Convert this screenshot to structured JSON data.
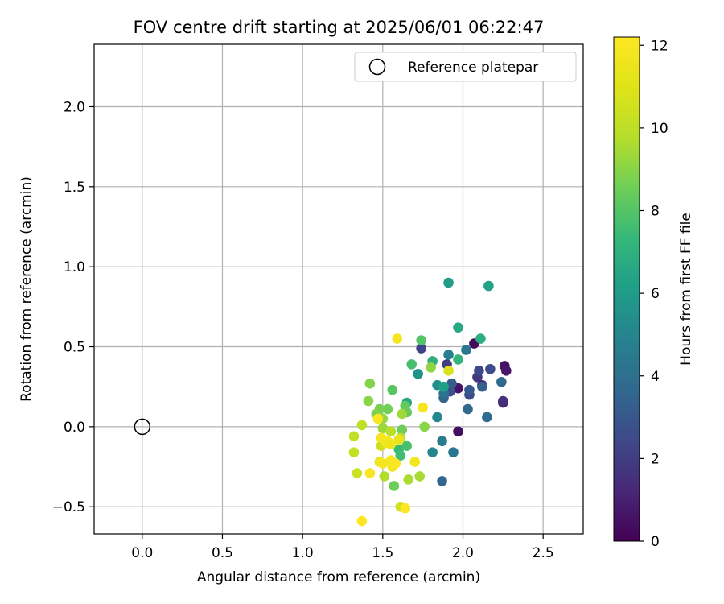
{
  "chart_data": {
    "type": "scatter",
    "title": "FOV centre drift starting at 2025/06/01 06:22:47",
    "xlabel": "Angular distance from reference (arcmin)",
    "ylabel": "Rotation from reference (arcmin)",
    "xlim": [
      -0.3,
      2.75
    ],
    "ylim": [
      -0.67,
      2.39
    ],
    "xticks": [
      0.0,
      0.5,
      1.0,
      1.5,
      2.0,
      2.5
    ],
    "xtick_labels": [
      "0.0",
      "0.5",
      "1.0",
      "1.5",
      "2.0",
      "2.5"
    ],
    "yticks": [
      -0.5,
      0.0,
      0.5,
      1.0,
      1.5,
      2.0
    ],
    "ytick_labels": [
      "−0.5",
      "0.0",
      "0.5",
      "1.0",
      "1.5",
      "2.0"
    ],
    "grid": true,
    "legend": {
      "placement": "top-right",
      "entries": [
        "Reference platepar"
      ]
    },
    "reference_point": {
      "name": "Reference platepar",
      "x": 0.0,
      "y": 0.0
    },
    "colorbar": {
      "label": "Hours from first FF file",
      "colormap": "viridis",
      "range": [
        0,
        12.2
      ],
      "ticks": [
        0,
        2,
        4,
        6,
        8,
        10,
        12
      ],
      "tick_labels": [
        "0",
        "2",
        "4",
        "6",
        "8",
        "10",
        "12"
      ]
    },
    "points": [
      {
        "x": 2.07,
        "y": 0.52,
        "h": 0.3
      },
      {
        "x": 2.26,
        "y": 0.38,
        "h": 0.5
      },
      {
        "x": 2.27,
        "y": 0.35,
        "h": 0.7
      },
      {
        "x": 1.97,
        "y": 0.24,
        "h": 0.6
      },
      {
        "x": 1.97,
        "y": -0.03,
        "h": 0.4
      },
      {
        "x": 2.25,
        "y": 0.15,
        "h": 1.0
      },
      {
        "x": 2.25,
        "y": 0.16,
        "h": 1.5
      },
      {
        "x": 2.09,
        "y": 0.31,
        "h": 1.8
      },
      {
        "x": 2.12,
        "y": 0.26,
        "h": 1.2
      },
      {
        "x": 1.74,
        "y": 0.49,
        "h": 2.2
      },
      {
        "x": 1.9,
        "y": 0.39,
        "h": 2.0
      },
      {
        "x": 2.1,
        "y": 0.35,
        "h": 2.4
      },
      {
        "x": 2.17,
        "y": 0.36,
        "h": 2.6
      },
      {
        "x": 2.04,
        "y": 0.2,
        "h": 2.5
      },
      {
        "x": 2.04,
        "y": 0.23,
        "h": 3.0
      },
      {
        "x": 1.92,
        "y": 0.22,
        "h": 2.8
      },
      {
        "x": 1.93,
        "y": 0.27,
        "h": 3.2
      },
      {
        "x": 2.12,
        "y": 0.25,
        "h": 3.3
      },
      {
        "x": 2.24,
        "y": 0.28,
        "h": 3.8
      },
      {
        "x": 2.03,
        "y": 0.11,
        "h": 3.7
      },
      {
        "x": 2.15,
        "y": 0.06,
        "h": 3.9
      },
      {
        "x": 1.88,
        "y": 0.18,
        "h": 3.5
      },
      {
        "x": 1.88,
        "y": 0.21,
        "h": 4.2
      },
      {
        "x": 1.87,
        "y": -0.34,
        "h": 3.6
      },
      {
        "x": 1.94,
        "y": -0.16,
        "h": 4.3
      },
      {
        "x": 1.87,
        "y": -0.09,
        "h": 4.6
      },
      {
        "x": 2.02,
        "y": 0.48,
        "h": 4.4
      },
      {
        "x": 1.91,
        "y": 0.45,
        "h": 4.8
      },
      {
        "x": 1.81,
        "y": -0.16,
        "h": 5.0
      },
      {
        "x": 1.84,
        "y": 0.06,
        "h": 5.2
      },
      {
        "x": 1.84,
        "y": 0.26,
        "h": 5.4
      },
      {
        "x": 1.72,
        "y": 0.33,
        "h": 5.6
      },
      {
        "x": 1.91,
        "y": 0.9,
        "h": 6.0
      },
      {
        "x": 2.16,
        "y": 0.88,
        "h": 6.3
      },
      {
        "x": 1.88,
        "y": 0.25,
        "h": 6.2
      },
      {
        "x": 1.97,
        "y": 0.62,
        "h": 6.6
      },
      {
        "x": 2.11,
        "y": 0.55,
        "h": 6.9
      },
      {
        "x": 1.97,
        "y": 0.42,
        "h": 7.2
      },
      {
        "x": 1.81,
        "y": 0.41,
        "h": 7.0
      },
      {
        "x": 1.65,
        "y": 0.15,
        "h": 6.5
      },
      {
        "x": 1.6,
        "y": -0.14,
        "h": 7.4
      },
      {
        "x": 1.61,
        "y": -0.18,
        "h": 7.6
      },
      {
        "x": 1.65,
        "y": -0.12,
        "h": 7.8
      },
      {
        "x": 1.68,
        "y": 0.39,
        "h": 7.7
      },
      {
        "x": 1.74,
        "y": 0.54,
        "h": 8.0
      },
      {
        "x": 1.56,
        "y": 0.23,
        "h": 8.1
      },
      {
        "x": 1.64,
        "y": 0.13,
        "h": 8.3
      },
      {
        "x": 1.65,
        "y": 0.09,
        "h": 8.4
      },
      {
        "x": 1.62,
        "y": -0.02,
        "h": 8.5
      },
      {
        "x": 1.53,
        "y": 0.11,
        "h": 8.6
      },
      {
        "x": 1.48,
        "y": 0.11,
        "h": 8.7
      },
      {
        "x": 1.46,
        "y": 0.08,
        "h": 8.8
      },
      {
        "x": 1.57,
        "y": -0.37,
        "h": 8.5
      },
      {
        "x": 1.42,
        "y": 0.27,
        "h": 8.9
      },
      {
        "x": 1.41,
        "y": 0.16,
        "h": 9.0
      },
      {
        "x": 1.76,
        "y": 0.0,
        "h": 9.0
      },
      {
        "x": 1.8,
        "y": 0.37,
        "h": 9.1
      },
      {
        "x": 1.5,
        "y": 0.05,
        "h": 9.2
      },
      {
        "x": 1.5,
        "y": -0.01,
        "h": 9.3
      },
      {
        "x": 1.62,
        "y": 0.08,
        "h": 9.4
      },
      {
        "x": 1.73,
        "y": -0.31,
        "h": 9.5
      },
      {
        "x": 1.66,
        "y": -0.33,
        "h": 9.6
      },
      {
        "x": 1.51,
        "y": -0.31,
        "h": 9.7
      },
      {
        "x": 1.61,
        "y": -0.07,
        "h": 9.8
      },
      {
        "x": 1.55,
        "y": -0.03,
        "h": 9.9
      },
      {
        "x": 1.37,
        "y": 0.01,
        "h": 10.0
      },
      {
        "x": 1.32,
        "y": -0.06,
        "h": 10.1
      },
      {
        "x": 1.32,
        "y": -0.16,
        "h": 10.2
      },
      {
        "x": 1.34,
        "y": -0.29,
        "h": 10.4
      },
      {
        "x": 1.49,
        "y": -0.12,
        "h": 10.5
      },
      {
        "x": 1.61,
        "y": -0.5,
        "h": 10.6
      },
      {
        "x": 1.91,
        "y": 0.35,
        "h": 10.8
      },
      {
        "x": 1.59,
        "y": 0.55,
        "h": 11.8
      },
      {
        "x": 1.75,
        "y": 0.12,
        "h": 11.9
      },
      {
        "x": 1.47,
        "y": 0.05,
        "h": 12.0
      },
      {
        "x": 1.49,
        "y": -0.07,
        "h": 11.9
      },
      {
        "x": 1.53,
        "y": -0.09,
        "h": 12.1
      },
      {
        "x": 1.52,
        "y": -0.1,
        "h": 11.8
      },
      {
        "x": 1.55,
        "y": -0.11,
        "h": 11.6
      },
      {
        "x": 1.6,
        "y": -0.08,
        "h": 11.4
      },
      {
        "x": 1.48,
        "y": -0.22,
        "h": 11.5
      },
      {
        "x": 1.5,
        "y": -0.23,
        "h": 11.9
      },
      {
        "x": 1.55,
        "y": -0.21,
        "h": 12.0
      },
      {
        "x": 1.56,
        "y": -0.25,
        "h": 11.9
      },
      {
        "x": 1.58,
        "y": -0.23,
        "h": 12.1
      },
      {
        "x": 1.42,
        "y": -0.29,
        "h": 12.0
      },
      {
        "x": 1.7,
        "y": -0.22,
        "h": 11.7
      },
      {
        "x": 1.64,
        "y": -0.51,
        "h": 12.1
      },
      {
        "x": 1.37,
        "y": -0.59,
        "h": 12.2
      }
    ]
  }
}
